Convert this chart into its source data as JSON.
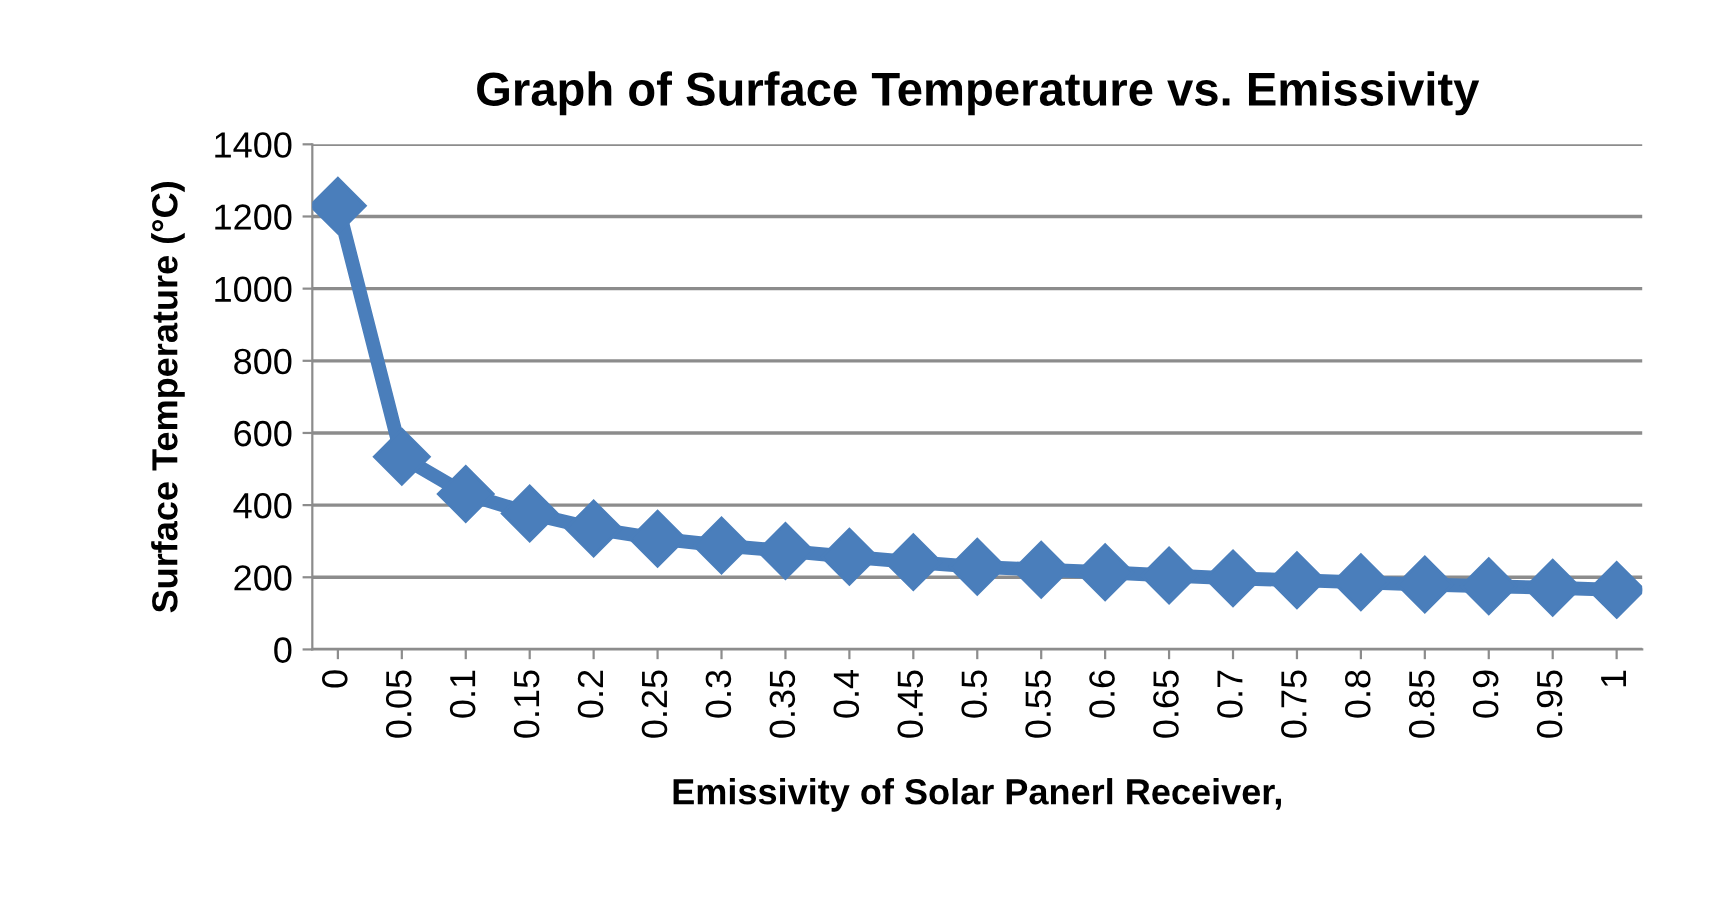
{
  "chart_data": {
    "type": "line",
    "title": "Graph of Surface Temperature vs. Emissivity",
    "xlabel": "Emissivity of Solar Panerl Receiver,",
    "ylabel": "Surface Temperature (°C)",
    "categories": [
      "0",
      "0.05",
      "0.1",
      "0.15",
      "0.2",
      "0.25",
      "0.3",
      "0.35",
      "0.4",
      "0.45",
      "0.5",
      "0.55",
      "0.6",
      "0.65",
      "0.7",
      "0.75",
      "0.8",
      "0.85",
      "0.9",
      "0.95",
      "1"
    ],
    "series": [
      {
        "color": "#4a7ebb",
        "values": [
          1230,
          534,
          431,
          377,
          335,
          307,
          288,
          273,
          257,
          242,
          229,
          221,
          214,
          205,
          197,
          192,
          186,
          180,
          175,
          171,
          165
        ]
      }
    ],
    "ylim": [
      0,
      1400
    ],
    "yticks": [
      0,
      200,
      400,
      600,
      800,
      1000,
      1200,
      1400
    ],
    "grid": "y",
    "marker": "diamond",
    "line_style": "solid"
  }
}
